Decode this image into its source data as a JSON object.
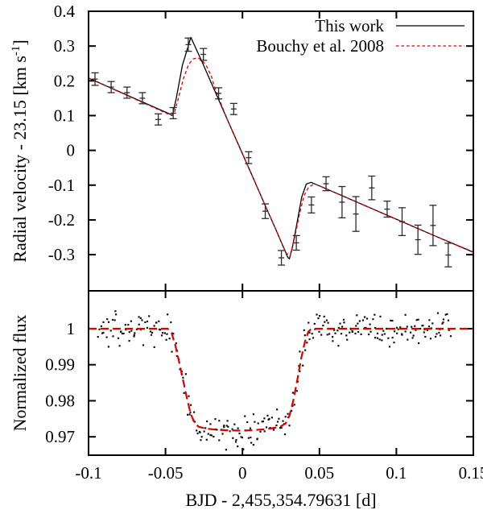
{
  "figure": {
    "xlabel": "BJD - 2,455,354.79631 [d]",
    "ylabel_top_main": "Radial velocity - 23.15 [km s",
    "ylabel_top_sup": "-1",
    "ylabel_top_close": "]",
    "ylabel_bottom": "Normalized flux",
    "colors": {
      "frame": "#000000",
      "model_this_work": "#000000",
      "model_bouchy": "#e00000",
      "errorbar": "#2b2b2b",
      "photometry_dot": "#111111"
    },
    "legend": {
      "position": "top-right-inside",
      "entries": [
        {
          "label": "This work",
          "style": "solid",
          "color": "#000000"
        },
        {
          "label": "Bouchy et al. 2008",
          "style": "dashed",
          "color": "#e00000"
        }
      ]
    }
  },
  "chart_data": [
    {
      "id": "rv-panel",
      "type": "line",
      "title": "",
      "ylabel": "Radial velocity - 23.15 [km s-1]",
      "xlim": [
        -0.1,
        0.15
      ],
      "ylim": [
        -0.404,
        0.4
      ],
      "grid": false,
      "xticks": [
        -0.1,
        -0.05,
        0,
        0.05,
        0.1,
        0.15
      ],
      "xtick_labels_shown": false,
      "yticks": [
        0.4,
        0.3,
        0.2,
        0.1,
        0,
        -0.1,
        -0.2,
        -0.3
      ],
      "ytick_labels": [
        "0.4",
        "0.3",
        "0.2",
        "0.1",
        "0",
        "-0.1",
        "-0.2",
        "-0.3"
      ],
      "series": [
        {
          "name": "RV observations",
          "type": "errorbar",
          "points": [
            [
              -0.0958,
              0.205,
              0.018
            ],
            [
              -0.0853,
              0.182,
              0.016
            ],
            [
              -0.075,
              0.166,
              0.016
            ],
            [
              -0.065,
              0.15,
              0.016
            ],
            [
              -0.0547,
              0.089,
              0.016
            ],
            [
              -0.045,
              0.107,
              0.016
            ],
            [
              -0.0352,
              0.304,
              0.019
            ],
            [
              -0.0254,
              0.276,
              0.017
            ],
            [
              -0.0155,
              0.164,
              0.016
            ],
            [
              -0.0057,
              0.119,
              0.016
            ],
            [
              0.004,
              -0.021,
              0.017
            ],
            [
              0.0148,
              -0.175,
              0.021
            ],
            [
              0.0253,
              -0.309,
              0.021
            ],
            [
              0.035,
              -0.266,
              0.021
            ],
            [
              0.0448,
              -0.157,
              0.023
            ],
            [
              0.0543,
              -0.096,
              0.02
            ],
            [
              0.0647,
              -0.149,
              0.045
            ],
            [
              0.0737,
              -0.183,
              0.05
            ],
            [
              0.084,
              -0.108,
              0.034
            ],
            [
              0.094,
              -0.169,
              0.023
            ],
            [
              0.1037,
              -0.205,
              0.04
            ],
            [
              0.114,
              -0.257,
              0.042
            ],
            [
              0.1238,
              -0.216,
              0.058
            ],
            [
              0.1337,
              -0.301,
              0.034
            ]
          ]
        },
        {
          "name": "This work",
          "type": "line",
          "dashed": false,
          "points": [
            [
              -0.1,
              0.208
            ],
            [
              -0.0455,
              0.101
            ],
            [
              -0.043,
              0.15
            ],
            [
              -0.039,
              0.245
            ],
            [
              -0.0335,
              0.325
            ],
            [
              -0.026,
              0.252
            ],
            [
              -0.018,
              0.171
            ],
            [
              -0.01,
              0.09
            ],
            [
              -0.002,
              0.01
            ],
            [
              0.006,
              -0.07
            ],
            [
              0.014,
              -0.151
            ],
            [
              0.021,
              -0.221
            ],
            [
              0.026,
              -0.272
            ],
            [
              0.0295,
              -0.308
            ],
            [
              0.0305,
              -0.312
            ],
            [
              0.0325,
              -0.278
            ],
            [
              0.0355,
              -0.207
            ],
            [
              0.0385,
              -0.134
            ],
            [
              0.0415,
              -0.097
            ],
            [
              0.0445,
              -0.092
            ],
            [
              0.05,
              -0.102
            ],
            [
              0.075,
              -0.15
            ],
            [
              0.1,
              -0.198
            ],
            [
              0.125,
              -0.246
            ],
            [
              0.15,
              -0.293
            ]
          ]
        },
        {
          "name": "Bouchy et al. 2008",
          "type": "line",
          "dashed": true,
          "points": [
            [
              -0.1,
              0.208
            ],
            [
              -0.046,
              0.1
            ],
            [
              -0.044,
              0.112
            ],
            [
              -0.0415,
              0.152
            ],
            [
              -0.0385,
              0.205
            ],
            [
              -0.035,
              0.247
            ],
            [
              -0.032,
              0.263
            ],
            [
              -0.029,
              0.2665
            ],
            [
              -0.026,
              0.258
            ],
            [
              -0.023,
              0.24
            ],
            [
              -0.02,
              0.21
            ],
            [
              -0.018,
              0.18
            ],
            [
              -0.01,
              0.09
            ],
            [
              -0.002,
              0.01
            ],
            [
              0.006,
              -0.07
            ],
            [
              0.014,
              -0.151
            ],
            [
              0.021,
              -0.221
            ],
            [
              0.0255,
              -0.267
            ],
            [
              0.0285,
              -0.296
            ],
            [
              0.031,
              -0.303
            ],
            [
              0.034,
              -0.248
            ],
            [
              0.037,
              -0.185
            ],
            [
              0.04,
              -0.13
            ],
            [
              0.043,
              -0.106
            ],
            [
              0.0465,
              -0.0965
            ],
            [
              0.05,
              -0.102
            ],
            [
              0.075,
              -0.15
            ],
            [
              0.1,
              -0.198
            ],
            [
              0.125,
              -0.246
            ],
            [
              0.15,
              -0.292
            ]
          ]
        }
      ]
    },
    {
      "id": "flux-panel",
      "type": "scatter",
      "title": "",
      "ylabel": "Normalized flux",
      "xlim": [
        -0.1,
        0.15
      ],
      "ylim": [
        0.9649,
        1.0105
      ],
      "grid": false,
      "xticks": [
        -0.1,
        -0.05,
        0,
        0.05,
        0.1,
        0.15
      ],
      "xtick_labels": [
        "-0.1",
        "-0.05",
        "0",
        "0.05",
        "0.1",
        "0.15"
      ],
      "yticks": [
        1,
        0.99,
        0.98,
        0.97
      ],
      "ytick_labels": [
        "1",
        "0.99",
        "0.98",
        "0.97"
      ],
      "series": [
        {
          "name": "photometry",
          "type": "scatter",
          "marker": "dot",
          "generated": {
            "n": 295,
            "x_start": -0.0935,
            "x_end": 0.135,
            "sigma": 0.0021,
            "x_jitter": 0.0007,
            "seed": 13
          }
        },
        {
          "name": "transit model (Bouchy et al. 2008)",
          "type": "line",
          "dashed": true,
          "points": [
            [
              -0.1,
              1.0
            ],
            [
              -0.0485,
              1.0
            ],
            [
              -0.046,
              0.9988
            ],
            [
              -0.0435,
              0.9952
            ],
            [
              -0.041,
              0.9905
            ],
            [
              -0.0385,
              0.9855
            ],
            [
              -0.036,
              0.9805
            ],
            [
              -0.0335,
              0.9762
            ],
            [
              -0.031,
              0.9738
            ],
            [
              -0.0285,
              0.9728
            ],
            [
              -0.024,
              0.9723
            ],
            [
              -0.018,
              0.972
            ],
            [
              -0.01,
              0.9718
            ],
            [
              0.0,
              0.9717
            ],
            [
              0.008,
              0.9719
            ],
            [
              0.015,
              0.9721
            ],
            [
              0.021,
              0.9725
            ],
            [
              0.025,
              0.9729
            ],
            [
              0.028,
              0.9737
            ],
            [
              0.0305,
              0.9758
            ],
            [
              0.033,
              0.98
            ],
            [
              0.0355,
              0.9855
            ],
            [
              0.038,
              0.9915
            ],
            [
              0.0405,
              0.9962
            ],
            [
              0.0428,
              0.9992
            ],
            [
              0.045,
              1.0
            ],
            [
              0.15,
              1.0
            ]
          ]
        }
      ]
    }
  ]
}
